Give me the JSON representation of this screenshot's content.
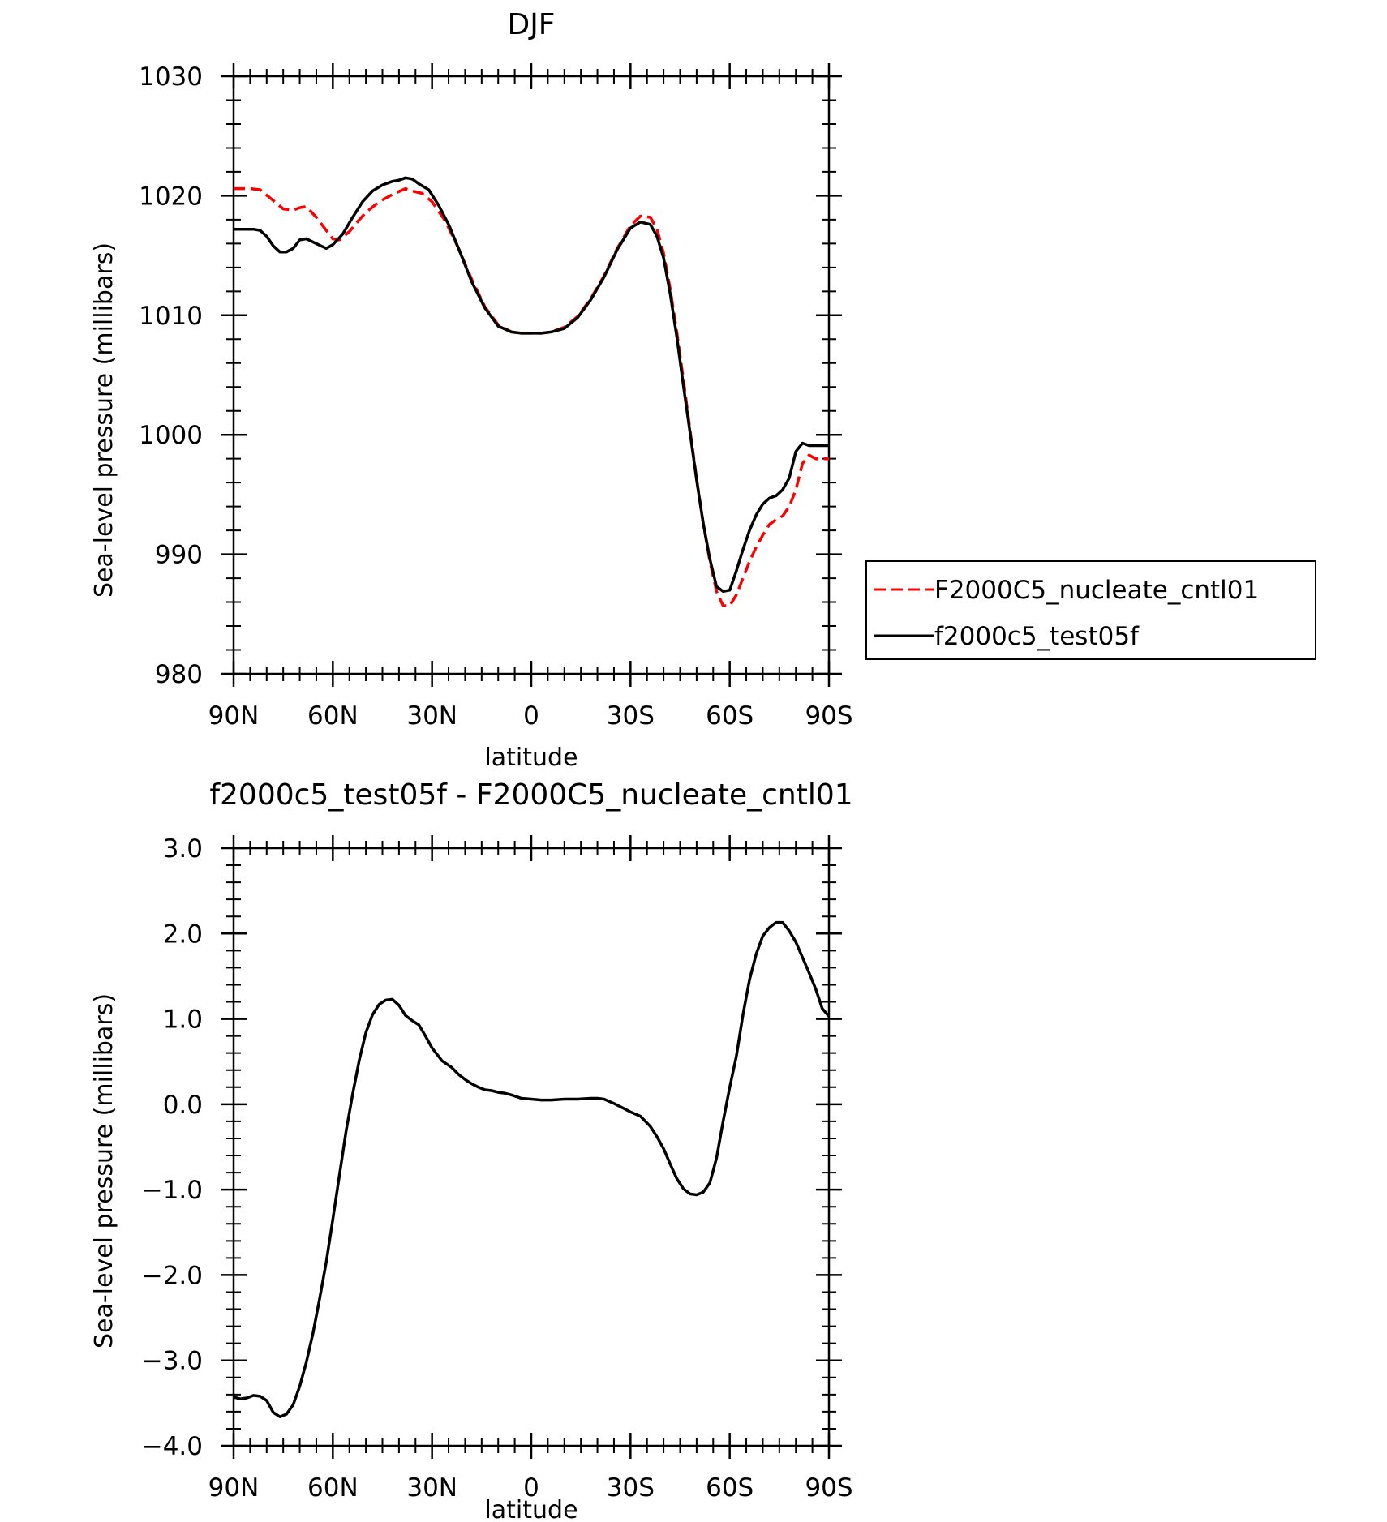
{
  "chart_data": [
    {
      "type": "line",
      "title": "DJF",
      "xlabel": "latitude",
      "ylabel": "Sea-level pressure (millibars)",
      "xlim": [
        90,
        -90
      ],
      "ylim": [
        980,
        1030
      ],
      "x_ticks": [
        90,
        60,
        30,
        0,
        -30,
        -60,
        -90
      ],
      "x_tick_labels": [
        "90N",
        "60N",
        "30N",
        "0",
        "30S",
        "60S",
        "90S"
      ],
      "y_ticks": [
        980,
        990,
        1000,
        1010,
        1020,
        1030
      ],
      "y_tick_labels": [
        "980",
        "990",
        "1000",
        "1010",
        "1020",
        "1030"
      ],
      "legend_position": "right",
      "series": [
        {
          "name": "F2000C5_nucleate_cntl01",
          "color": "#ff0000",
          "dash": "dashed",
          "x": [
            90,
            85,
            82,
            78,
            75,
            72,
            70,
            68,
            65,
            62,
            60,
            58,
            55,
            52,
            50,
            46,
            42,
            38,
            36,
            33,
            30,
            26,
            22,
            18,
            14,
            10,
            6,
            3,
            0,
            -3,
            -6,
            -10,
            -14,
            -18,
            -22,
            -26,
            -30,
            -33,
            -36,
            -38,
            -40,
            -42,
            -44,
            -46,
            -48,
            -50,
            -52,
            -54,
            -56,
            -58,
            -60,
            -62,
            -64,
            -66,
            -68,
            -70,
            -72,
            -74,
            -76,
            -78,
            -80,
            -82,
            -84,
            -86,
            -87,
            -88,
            -89,
            -90
          ],
          "values": [
            1020.6,
            1020.6,
            1020.5,
            1019.6,
            1018.9,
            1018.8,
            1019.0,
            1019.1,
            1018.2,
            1017.1,
            1016.4,
            1016.3,
            1017.0,
            1018.0,
            1018.6,
            1019.5,
            1020.1,
            1020.6,
            1020.4,
            1020.2,
            1019.5,
            1017.9,
            1015.6,
            1013.0,
            1010.7,
            1009.2,
            1008.6,
            1008.5,
            1008.5,
            1008.5,
            1008.6,
            1009.0,
            1009.9,
            1011.4,
            1013.3,
            1015.6,
            1017.5,
            1018.3,
            1018.2,
            1017.2,
            1015.2,
            1012.2,
            1008.6,
            1004.6,
            1000.4,
            996.3,
            992.6,
            989.4,
            986.9,
            985.7,
            985.7,
            986.6,
            988.0,
            989.4,
            990.6,
            991.6,
            992.5,
            992.9,
            993.2,
            994.0,
            995.4,
            997.6,
            998.3,
            998.0,
            998.0,
            998.0,
            998.0,
            998.0
          ]
        },
        {
          "name": "f2000c5_test05f",
          "color": "#000000",
          "dash": "solid",
          "x": [
            90,
            88,
            86,
            84,
            82,
            80,
            78,
            76,
            74,
            72,
            70,
            68,
            65,
            62,
            60,
            57,
            54,
            51,
            48,
            45,
            42,
            40,
            38,
            36,
            34,
            31,
            28,
            25,
            22,
            18,
            14,
            10,
            6,
            3,
            0,
            -3,
            -6,
            -10,
            -14,
            -18,
            -22,
            -26,
            -30,
            -33,
            -36,
            -38,
            -40,
            -42,
            -44,
            -46,
            -48,
            -50,
            -52,
            -54,
            -56,
            -58,
            -60,
            -62,
            -64,
            -66,
            -68,
            -70,
            -72,
            -74,
            -76,
            -78,
            -80,
            -82,
            -84,
            -86,
            -87,
            -88,
            -89,
            -90
          ],
          "values": [
            1017.2,
            1017.2,
            1017.2,
            1017.2,
            1017.1,
            1016.6,
            1015.8,
            1015.3,
            1015.3,
            1015.6,
            1016.3,
            1016.4,
            1016.0,
            1015.6,
            1015.9,
            1016.8,
            1018.2,
            1019.5,
            1020.4,
            1020.9,
            1021.2,
            1021.3,
            1021.5,
            1021.4,
            1021.0,
            1020.5,
            1019.2,
            1017.6,
            1015.6,
            1012.8,
            1010.6,
            1009.1,
            1008.6,
            1008.5,
            1008.5,
            1008.5,
            1008.6,
            1008.9,
            1009.8,
            1011.3,
            1013.2,
            1015.5,
            1017.3,
            1017.8,
            1017.6,
            1016.6,
            1014.8,
            1011.8,
            1008.2,
            1004.1,
            1000.2,
            996.2,
            992.6,
            989.6,
            987.3,
            986.9,
            987.0,
            988.6,
            990.4,
            992.0,
            993.3,
            994.2,
            994.7,
            994.9,
            995.4,
            996.4,
            998.6,
            999.3,
            999.1,
            999.1,
            999.1,
            999.1,
            999.1,
            999.1
          ]
        }
      ]
    },
    {
      "type": "line",
      "title": "f2000c5_test05f - F2000C5_nucleate_cntl01",
      "xlabel": "latitude",
      "ylabel": "Sea-level pressure (millibars)",
      "xlim": [
        90,
        -90
      ],
      "ylim": [
        -4.0,
        3.0
      ],
      "x_ticks": [
        90,
        60,
        30,
        0,
        -30,
        -60,
        -90
      ],
      "x_tick_labels": [
        "90N",
        "60N",
        "30N",
        "0",
        "30S",
        "60S",
        "90S"
      ],
      "y_ticks": [
        -4.0,
        -3.0,
        -2.0,
        -1.0,
        0.0,
        1.0,
        2.0,
        3.0
      ],
      "y_tick_labels": [
        "−4.0",
        "−3.0",
        "−2.0",
        "−1.0",
        "0.0",
        "1.0",
        "2.0",
        "3.0"
      ],
      "series": [
        {
          "color": "#000000",
          "dash": "solid",
          "x": [
            90,
            88,
            86,
            84,
            82,
            80,
            78,
            76,
            74,
            72,
            70,
            68,
            66,
            64,
            62,
            60,
            58,
            56,
            54,
            52,
            50,
            48,
            46,
            44,
            42,
            40,
            38,
            36,
            34,
            32,
            30,
            27,
            24,
            22,
            20,
            18,
            16,
            14,
            12,
            10,
            8,
            6,
            3,
            0,
            -3,
            -6,
            -10,
            -14,
            -18,
            -20,
            -22,
            -25,
            -28,
            -30,
            -33,
            -36,
            -38,
            -40,
            -42,
            -44,
            -46,
            -48,
            -50,
            -52,
            -54,
            -56,
            -58,
            -60,
            -62,
            -64,
            -66,
            -68,
            -70,
            -72,
            -74,
            -76,
            -78,
            -80,
            -82,
            -84,
            -86,
            -88,
            -90
          ],
          "values": [
            -3.43,
            -3.45,
            -3.44,
            -3.41,
            -3.42,
            -3.47,
            -3.61,
            -3.66,
            -3.63,
            -3.52,
            -3.3,
            -3.02,
            -2.68,
            -2.28,
            -1.85,
            -1.35,
            -0.83,
            -0.32,
            0.12,
            0.52,
            0.84,
            1.05,
            1.17,
            1.22,
            1.23,
            1.16,
            1.04,
            0.98,
            0.93,
            0.8,
            0.66,
            0.51,
            0.43,
            0.35,
            0.29,
            0.24,
            0.2,
            0.17,
            0.16,
            0.14,
            0.13,
            0.11,
            0.07,
            0.06,
            0.05,
            0.05,
            0.06,
            0.06,
            0.07,
            0.07,
            0.06,
            0.01,
            -0.05,
            -0.09,
            -0.14,
            -0.26,
            -0.38,
            -0.52,
            -0.7,
            -0.87,
            -0.99,
            -1.05,
            -1.06,
            -1.03,
            -0.92,
            -0.63,
            -0.2,
            0.2,
            0.56,
            1.05,
            1.46,
            1.76,
            1.97,
            2.07,
            2.13,
            2.13,
            2.03,
            1.9,
            1.72,
            1.54,
            1.35,
            1.12,
            1.03
          ]
        }
      ]
    }
  ]
}
